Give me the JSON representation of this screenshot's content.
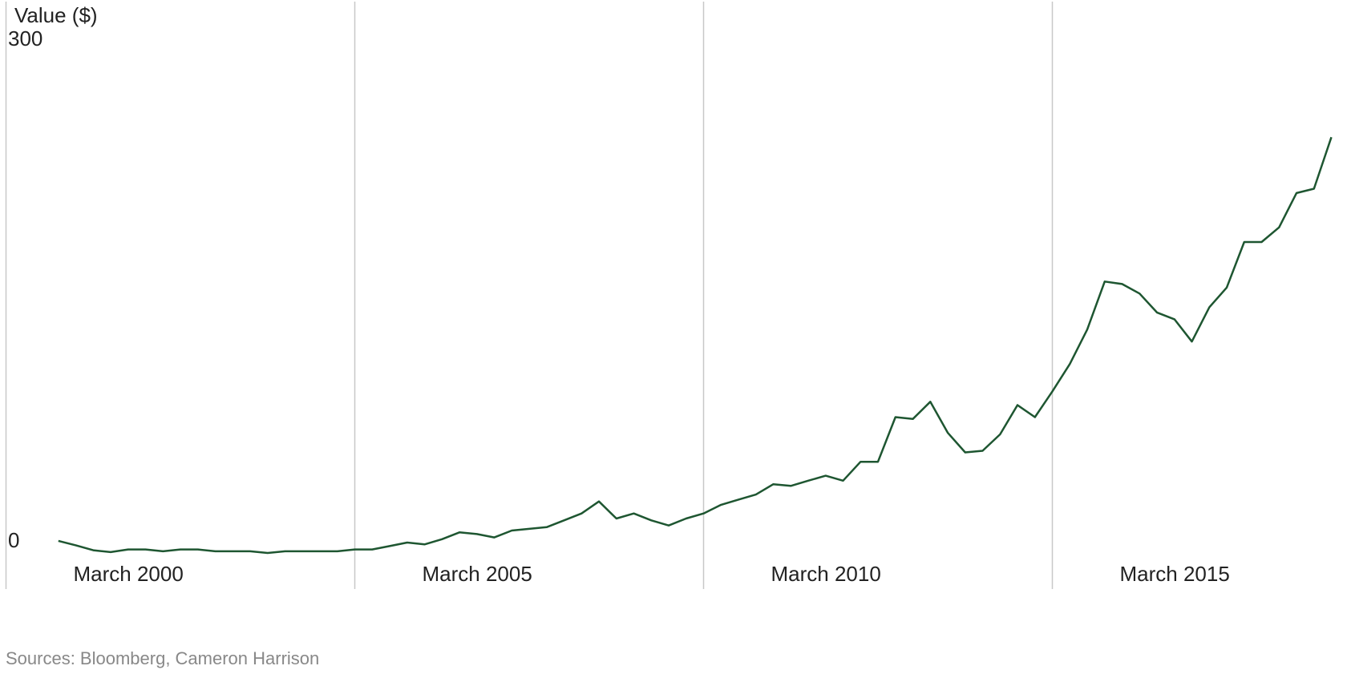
{
  "chart_data": {
    "type": "line",
    "y_label": "Value ($)",
    "source": "Sources: Bloomberg, Cameron Harrison",
    "x": [
      "2000-12",
      "2001-03",
      "2001-06",
      "2001-09",
      "2001-12",
      "2002-03",
      "2002-06",
      "2002-09",
      "2002-12",
      "2003-03",
      "2003-06",
      "2003-09",
      "2003-12",
      "2004-03",
      "2004-06",
      "2004-09",
      "2004-12",
      "2005-03",
      "2005-06",
      "2005-09",
      "2005-12",
      "2006-03",
      "2006-06",
      "2006-09",
      "2006-12",
      "2007-03",
      "2007-06",
      "2007-09",
      "2007-12",
      "2008-03",
      "2008-06",
      "2008-09",
      "2008-12",
      "2009-03",
      "2009-06",
      "2009-09",
      "2009-12",
      "2010-03",
      "2010-06",
      "2010-09",
      "2010-12",
      "2011-03",
      "2011-06",
      "2011-09",
      "2011-12",
      "2012-03",
      "2012-06",
      "2012-09",
      "2012-12",
      "2013-03",
      "2013-06",
      "2013-09",
      "2013-12",
      "2014-03",
      "2014-06",
      "2014-09",
      "2014-12",
      "2015-03",
      "2015-06",
      "2015-09",
      "2015-12",
      "2016-03",
      "2016-06",
      "2016-09",
      "2016-12",
      "2017-03",
      "2017-06",
      "2017-09",
      "2017-12",
      "2018-03",
      "2018-06",
      "2018-09",
      "2018-12",
      "2019-03"
    ],
    "series": [
      {
        "name": "Value",
        "color": "#1e5631",
        "values": [
          7.7,
          5.1,
          2.1,
          1.0,
          2.6,
          2.6,
          1.5,
          2.6,
          2.6,
          1.5,
          1.5,
          1.5,
          0.5,
          1.5,
          1.5,
          1.5,
          1.5,
          2.6,
          2.6,
          4.6,
          6.7,
          5.6,
          8.7,
          12.8,
          11.8,
          9.8,
          13.9,
          14.9,
          15.9,
          20.0,
          24.1,
          31.3,
          21.1,
          24.1,
          20.0,
          16.9,
          21.1,
          24.1,
          29.3,
          32.4,
          35.4,
          41.6,
          40.6,
          43.7,
          46.7,
          43.7,
          55.0,
          55.0,
          81.7,
          80.6,
          90.9,
          72.4,
          60.6,
          61.6,
          71.4,
          88.9,
          81.7,
          97.1,
          113.5,
          134.1,
          162.8,
          161.3,
          155.6,
          144.3,
          140.2,
          126.9,
          147.4,
          159.2,
          186.4,
          186.4,
          195.2,
          215.7,
          218.3,
          249.1
        ]
      }
    ],
    "xlim": [
      "2000-03",
      "2019-05"
    ],
    "xticks": [
      {
        "value": "2000-03",
        "label": "March 2000"
      },
      {
        "value": "2005-03",
        "label": "March 2005"
      },
      {
        "value": "2010-03",
        "label": "March 2010"
      },
      {
        "value": "2015-03",
        "label": "March 2015"
      }
    ],
    "ylim": [
      0,
      300
    ],
    "yticks": [
      0,
      300
    ],
    "xgrid": true
  }
}
